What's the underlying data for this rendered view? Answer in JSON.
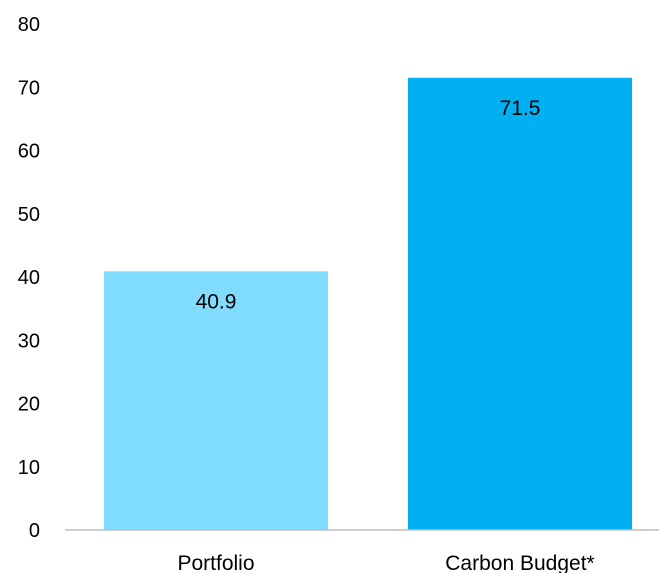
{
  "chart_data": {
    "type": "bar",
    "categories": [
      "Portfolio",
      "Carbon Budget*"
    ],
    "values": [
      40.9,
      71.5
    ],
    "data_labels": [
      "40.9",
      "71.5"
    ],
    "colors": [
      "#7fdcff",
      "#00b0f0"
    ],
    "title": "",
    "xlabel": "",
    "ylabel": "",
    "ylim": [
      0,
      80
    ],
    "yticks": [
      0,
      10,
      20,
      30,
      40,
      50,
      60,
      70,
      80
    ],
    "grid": false,
    "legend": "none"
  }
}
